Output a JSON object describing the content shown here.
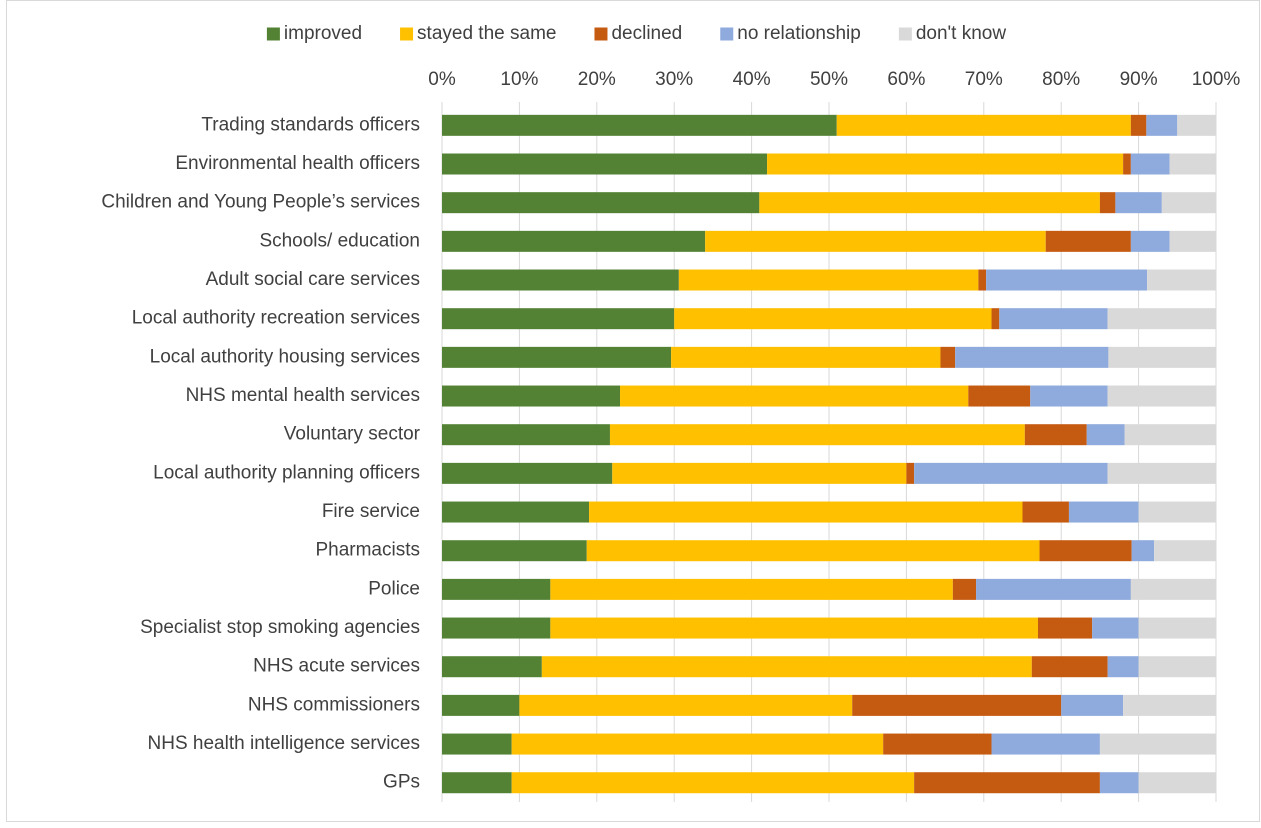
{
  "chart_data": {
    "type": "bar",
    "orientation": "horizontal",
    "stacked": "percent",
    "categories": [
      "Trading standards officers",
      "Environmental health officers",
      "Children and Young People’s services",
      "Schools/ education",
      "Adult social care services",
      "Local authority recreation services",
      "Local authority housing services",
      "NHS mental health services",
      "Voluntary sector",
      "Local authority planning officers",
      "Fire service",
      "Pharmacists",
      "Police",
      "Specialist stop smoking agencies",
      "NHS acute services",
      "NHS commissioners",
      "NHS health intelligence services",
      "GPs"
    ],
    "series": [
      {
        "name": "improved",
        "color": "#548235",
        "values": [
          51,
          42,
          41,
          34,
          30.6,
          30,
          29.6,
          23,
          21.7,
          22,
          19,
          18.7,
          14,
          14,
          12.9,
          10,
          9,
          9
        ]
      },
      {
        "name": "stayed the same",
        "color": "#ffc000",
        "values": [
          38,
          46,
          44,
          44,
          38.7,
          41,
          34.8,
          45,
          53.6,
          38,
          56,
          58.5,
          52,
          63,
          63.3,
          43,
          48,
          52
        ]
      },
      {
        "name": "declined",
        "color": "#c55a11",
        "values": [
          2,
          1,
          2,
          11,
          1,
          1,
          1.9,
          8,
          8,
          1,
          6,
          11.9,
          3,
          7,
          9.8,
          27,
          14,
          24
        ]
      },
      {
        "name": "no relationship",
        "color": "#8faadc",
        "values": [
          4,
          5,
          6,
          5,
          20.8,
          14,
          19.8,
          10,
          4.9,
          25,
          9,
          2.9,
          20,
          6,
          4,
          8,
          14,
          5
        ]
      },
      {
        "name": "don't know",
        "color": "#d9d9d9",
        "values": [
          5,
          6,
          7,
          6,
          8.9,
          14,
          13.9,
          14,
          11.8,
          14,
          10,
          8,
          11,
          10,
          10,
          12,
          15,
          10
        ]
      }
    ],
    "xlim": [
      0,
      100
    ],
    "x_ticks": [
      "0%",
      "10%",
      "20%",
      "30%",
      "40%",
      "50%",
      "60%",
      "70%",
      "80%",
      "90%",
      "100%"
    ],
    "x_axis_position": "top",
    "legend_position": "top",
    "grid": "vertical"
  }
}
